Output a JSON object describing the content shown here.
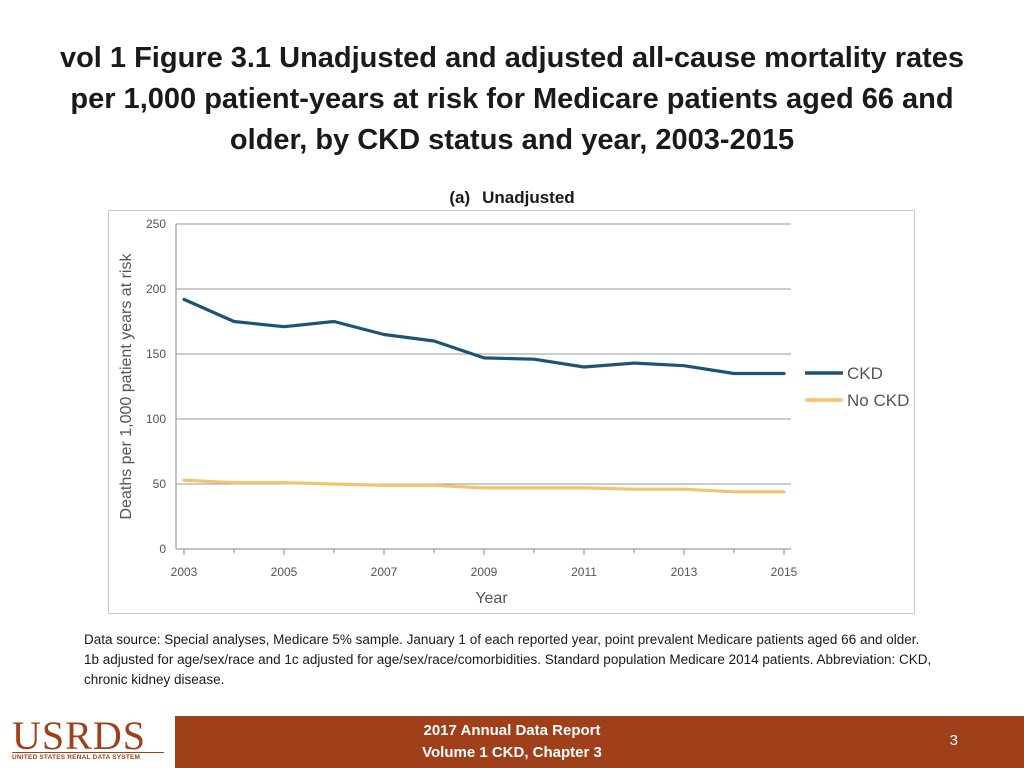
{
  "slide": {
    "title": "vol 1 Figure 3.1 Unadjusted and adjusted all-cause mortality rates per 1,000 patient-years at risk for Medicare patients aged 66 and older, by CKD status and year, 2003-2015",
    "panel_tag": "(a)",
    "panel_name": "Unadjusted",
    "footnote": "Data source: Special analyses, Medicare 5% sample. January 1 of each reported year, point prevalent Medicare patients aged 66 and older. 1b adjusted for age/sex/race and 1c adjusted for age/sex/race/comorbidities. Standard population Medicare 2014 patients. Abbreviation: CKD, chronic kidney disease.",
    "footer_line1": "2017 Annual Data Report",
    "footer_line2": "Volume 1 CKD, Chapter 3",
    "page_number": "3",
    "logo_text": "USRDS",
    "logo_subtitle": "UNITED STATES RENAL DATA SYSTEM"
  },
  "colors": {
    "ckd": "#1d5476",
    "no_ckd": "#f2c46d",
    "footer_bg": "#a0401a"
  },
  "chart_data": {
    "type": "line",
    "title": "Unadjusted",
    "xlabel": "Year",
    "ylabel": "Deaths per 1,000 patient years at risk",
    "x": [
      2003,
      2004,
      2005,
      2006,
      2007,
      2008,
      2009,
      2010,
      2011,
      2012,
      2013,
      2014,
      2015
    ],
    "xticks": [
      "2003",
      "2005",
      "2007",
      "2009",
      "2011",
      "2013",
      "2015"
    ],
    "yticks": [
      "0",
      "50",
      "100",
      "150",
      "200",
      "250"
    ],
    "ylim": [
      0,
      250
    ],
    "grid": true,
    "legend_position": "right",
    "series": [
      {
        "name": "CKD",
        "values": [
          192,
          175,
          171,
          175,
          165,
          160,
          147,
          146,
          140,
          143,
          141,
          135,
          135
        ]
      },
      {
        "name": "No CKD",
        "values": [
          53,
          51,
          51,
          50,
          49,
          49,
          47,
          47,
          47,
          46,
          46,
          44,
          44
        ]
      }
    ]
  }
}
